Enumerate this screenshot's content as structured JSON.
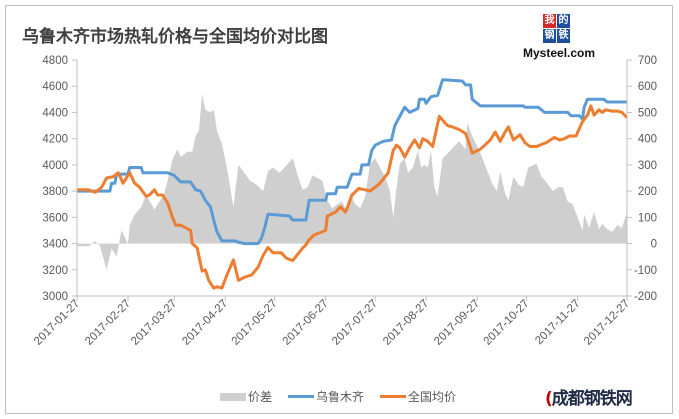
{
  "chart_data": {
    "type": "line",
    "title": "乌鲁木齐市场热轧价格与全国均价对比图",
    "x_unit": "days since 2017-01-27",
    "x_range": [
      0,
      334
    ],
    "xticks": [
      {
        "day": 0,
        "label": "2017-01-27"
      },
      {
        "day": 31,
        "label": "2017-02-27"
      },
      {
        "day": 59,
        "label": "2017-03-27"
      },
      {
        "day": 90,
        "label": "2017-04-27"
      },
      {
        "day": 120,
        "label": "2017-05-27"
      },
      {
        "day": 151,
        "label": "2017-06-27"
      },
      {
        "day": 181,
        "label": "2017-07-27"
      },
      {
        "day": 212,
        "label": "2017-08-27"
      },
      {
        "day": 243,
        "label": "2017-09-27"
      },
      {
        "day": 273,
        "label": "2017-10-27"
      },
      {
        "day": 304,
        "label": "2017-11-27"
      },
      {
        "day": 334,
        "label": "2017-12-27"
      }
    ],
    "left_axis": {
      "ylim": [
        3000,
        4800
      ],
      "ticks": [
        "3000",
        "3200",
        "3400",
        "3600",
        "3800",
        "4000",
        "4200",
        "4400",
        "4600",
        "4800"
      ]
    },
    "right_axis": {
      "ylim": [
        -200,
        700
      ],
      "ticks": [
        "-200",
        "-100",
        "0",
        "100",
        "200",
        "300",
        "400",
        "500",
        "600",
        "700"
      ]
    },
    "legend_position": "bottom",
    "series": [
      {
        "name": "价差",
        "kind": "area",
        "axis": "right",
        "color": "#d0cfcf",
        "points": [
          [
            0,
            -10
          ],
          [
            7,
            -10
          ],
          [
            11,
            10
          ],
          [
            14,
            -10
          ],
          [
            18,
            -100
          ],
          [
            21,
            -20
          ],
          [
            24,
            -50
          ],
          [
            27,
            50
          ],
          [
            31,
            0
          ],
          [
            32,
            70
          ],
          [
            35,
            110
          ],
          [
            39,
            140
          ],
          [
            42,
            185
          ],
          [
            47,
            130
          ],
          [
            50,
            160
          ],
          [
            53,
            190
          ],
          [
            55,
            240
          ],
          [
            58,
            320
          ],
          [
            61,
            360
          ],
          [
            63,
            330
          ],
          [
            67,
            350
          ],
          [
            70,
            350
          ],
          [
            72,
            410
          ],
          [
            74,
            430
          ],
          [
            76,
            570
          ],
          [
            78,
            510
          ],
          [
            81,
            500
          ],
          [
            83,
            510
          ],
          [
            85,
            430
          ],
          [
            88,
            380
          ],
          [
            91,
            290
          ],
          [
            95,
            140
          ],
          [
            98,
            300
          ],
          [
            101,
            275
          ],
          [
            105,
            240
          ],
          [
            109,
            225
          ],
          [
            113,
            200
          ],
          [
            116,
            275
          ],
          [
            119,
            290
          ],
          [
            123,
            270
          ],
          [
            126,
            290
          ],
          [
            131,
            325
          ],
          [
            134,
            260
          ],
          [
            137,
            205
          ],
          [
            140,
            215
          ],
          [
            143,
            260
          ],
          [
            149,
            240
          ],
          [
            152,
            165
          ],
          [
            155,
            135
          ],
          [
            158,
            150
          ],
          [
            161,
            160
          ],
          [
            163,
            135
          ],
          [
            166,
            190
          ],
          [
            169,
            150
          ],
          [
            172,
            135
          ],
          [
            175,
            180
          ],
          [
            178,
            305
          ],
          [
            181,
            325
          ],
          [
            184,
            290
          ],
          [
            187,
            255
          ],
          [
            190,
            200
          ],
          [
            192,
            100
          ],
          [
            194,
            210
          ],
          [
            196,
            305
          ],
          [
            199,
            325
          ],
          [
            201,
            270
          ],
          [
            204,
            290
          ],
          [
            207,
            355
          ],
          [
            209,
            290
          ],
          [
            211,
            300
          ],
          [
            213,
            290
          ],
          [
            215,
            355
          ],
          [
            217,
            215
          ],
          [
            219,
            180
          ],
          [
            222,
            325
          ],
          [
            226,
            350
          ],
          [
            232,
            390
          ],
          [
            236,
            360
          ],
          [
            237,
            460
          ],
          [
            240,
            410
          ],
          [
            245,
            345
          ],
          [
            249,
            280
          ],
          [
            252,
            230
          ],
          [
            255,
            200
          ],
          [
            257,
            275
          ],
          [
            260,
            190
          ],
          [
            262,
            165
          ],
          [
            265,
            255
          ],
          [
            268,
            225
          ],
          [
            271,
            215
          ],
          [
            274,
            290
          ],
          [
            279,
            305
          ],
          [
            282,
            255
          ],
          [
            285,
            235
          ],
          [
            289,
            200
          ],
          [
            292,
            215
          ],
          [
            295,
            215
          ],
          [
            298,
            160
          ],
          [
            301,
            150
          ],
          [
            304,
            100
          ],
          [
            307,
            50
          ],
          [
            308,
            110
          ],
          [
            311,
            60
          ],
          [
            314,
            120
          ],
          [
            317,
            55
          ],
          [
            319,
            75
          ],
          [
            322,
            55
          ],
          [
            325,
            45
          ],
          [
            328,
            70
          ],
          [
            331,
            60
          ],
          [
            334,
            120
          ]
        ]
      },
      {
        "name": "乌鲁木齐",
        "kind": "line",
        "axis": "left",
        "color": "#5b9bd5",
        "points": [
          [
            0,
            3800
          ],
          [
            20,
            3800
          ],
          [
            21,
            3860
          ],
          [
            23,
            3860
          ],
          [
            24,
            3930
          ],
          [
            31,
            3930
          ],
          [
            32,
            3980
          ],
          [
            39,
            3980
          ],
          [
            40,
            3940
          ],
          [
            55,
            3940
          ],
          [
            59,
            3920
          ],
          [
            63,
            3870
          ],
          [
            69,
            3870
          ],
          [
            72,
            3810
          ],
          [
            75,
            3800
          ],
          [
            78,
            3730
          ],
          [
            81,
            3680
          ],
          [
            83,
            3580
          ],
          [
            85,
            3490
          ],
          [
            88,
            3420
          ],
          [
            96,
            3420
          ],
          [
            98,
            3410
          ],
          [
            102,
            3400
          ],
          [
            110,
            3400
          ],
          [
            112,
            3440
          ],
          [
            114,
            3520
          ],
          [
            116,
            3625
          ],
          [
            129,
            3610
          ],
          [
            131,
            3580
          ],
          [
            139,
            3580
          ],
          [
            141,
            3730
          ],
          [
            151,
            3730
          ],
          [
            152,
            3780
          ],
          [
            157,
            3780
          ],
          [
            158,
            3830
          ],
          [
            164,
            3830
          ],
          [
            167,
            3930
          ],
          [
            172,
            3930
          ],
          [
            173,
            4000
          ],
          [
            177,
            4000
          ],
          [
            179,
            4110
          ],
          [
            181,
            4150
          ],
          [
            186,
            4180
          ],
          [
            191,
            4190
          ],
          [
            193,
            4300
          ],
          [
            196,
            4370
          ],
          [
            199,
            4440
          ],
          [
            202,
            4400
          ],
          [
            207,
            4430
          ],
          [
            208,
            4500
          ],
          [
            211,
            4500
          ],
          [
            212,
            4470
          ],
          [
            215,
            4520
          ],
          [
            219,
            4530
          ],
          [
            222,
            4650
          ],
          [
            234,
            4640
          ],
          [
            236,
            4610
          ],
          [
            239,
            4610
          ],
          [
            240,
            4500
          ],
          [
            245,
            4450
          ],
          [
            271,
            4450
          ],
          [
            272,
            4440
          ],
          [
            280,
            4440
          ],
          [
            284,
            4400
          ],
          [
            298,
            4400
          ],
          [
            300,
            4375
          ],
          [
            305,
            4375
          ],
          [
            307,
            4350
          ],
          [
            308,
            4440
          ],
          [
            310,
            4500
          ],
          [
            320,
            4500
          ],
          [
            322,
            4480
          ],
          [
            334,
            4480
          ]
        ]
      },
      {
        "name": "全国均价",
        "kind": "line",
        "axis": "left",
        "color": "#ed7d31",
        "points": [
          [
            0,
            3810
          ],
          [
            7,
            3810
          ],
          [
            11,
            3790
          ],
          [
            15,
            3830
          ],
          [
            18,
            3900
          ],
          [
            22,
            3910
          ],
          [
            25,
            3940
          ],
          [
            28,
            3860
          ],
          [
            32,
            3940
          ],
          [
            35,
            3860
          ],
          [
            38,
            3830
          ],
          [
            42,
            3760
          ],
          [
            44,
            3770
          ],
          [
            47,
            3810
          ],
          [
            49,
            3770
          ],
          [
            52,
            3770
          ],
          [
            55,
            3710
          ],
          [
            58,
            3600
          ],
          [
            60,
            3540
          ],
          [
            63,
            3540
          ],
          [
            66,
            3520
          ],
          [
            69,
            3500
          ],
          [
            70,
            3400
          ],
          [
            73,
            3365
          ],
          [
            76,
            3190
          ],
          [
            78,
            3200
          ],
          [
            80,
            3120
          ],
          [
            83,
            3060
          ],
          [
            85,
            3070
          ],
          [
            88,
            3060
          ],
          [
            91,
            3160
          ],
          [
            95,
            3275
          ],
          [
            98,
            3120
          ],
          [
            102,
            3145
          ],
          [
            106,
            3160
          ],
          [
            110,
            3220
          ],
          [
            113,
            3310
          ],
          [
            116,
            3370
          ],
          [
            119,
            3330
          ],
          [
            124,
            3330
          ],
          [
            127,
            3290
          ],
          [
            131,
            3270
          ],
          [
            137,
            3365
          ],
          [
            139,
            3390
          ],
          [
            141,
            3430
          ],
          [
            144,
            3465
          ],
          [
            151,
            3500
          ],
          [
            152,
            3610
          ],
          [
            157,
            3640
          ],
          [
            160,
            3680
          ],
          [
            163,
            3640
          ],
          [
            164,
            3670
          ],
          [
            167,
            3770
          ],
          [
            171,
            3820
          ],
          [
            175,
            3810
          ],
          [
            178,
            3800
          ],
          [
            181,
            3830
          ],
          [
            184,
            3860
          ],
          [
            189,
            3940
          ],
          [
            192,
            4110
          ],
          [
            194,
            4150
          ],
          [
            196,
            4130
          ],
          [
            199,
            4060
          ],
          [
            202,
            4130
          ],
          [
            205,
            4190
          ],
          [
            208,
            4130
          ],
          [
            210,
            4200
          ],
          [
            213,
            4180
          ],
          [
            216,
            4140
          ],
          [
            220,
            4370
          ],
          [
            225,
            4300
          ],
          [
            228,
            4290
          ],
          [
            232,
            4270
          ],
          [
            236,
            4240
          ],
          [
            239,
            4130
          ],
          [
            240,
            4090
          ],
          [
            245,
            4120
          ],
          [
            251,
            4190
          ],
          [
            254,
            4250
          ],
          [
            257,
            4180
          ],
          [
            260,
            4250
          ],
          [
            262,
            4290
          ],
          [
            265,
            4190
          ],
          [
            269,
            4230
          ],
          [
            272,
            4170
          ],
          [
            275,
            4140
          ],
          [
            279,
            4140
          ],
          [
            283,
            4160
          ],
          [
            285,
            4170
          ],
          [
            290,
            4210
          ],
          [
            293,
            4190
          ],
          [
            296,
            4200
          ],
          [
            299,
            4220
          ],
          [
            303,
            4220
          ],
          [
            307,
            4330
          ],
          [
            310,
            4380
          ],
          [
            312,
            4450
          ],
          [
            314,
            4380
          ],
          [
            317,
            4420
          ],
          [
            319,
            4400
          ],
          [
            321,
            4420
          ],
          [
            325,
            4410
          ],
          [
            328,
            4410
          ],
          [
            331,
            4400
          ],
          [
            334,
            4360
          ]
        ]
      }
    ]
  },
  "logos": {
    "mysteel_chars": [
      "我",
      "的",
      "钢",
      "铁"
    ],
    "mysteel_text": "Mysteel.com",
    "chengdu": "成都钢铁网"
  }
}
